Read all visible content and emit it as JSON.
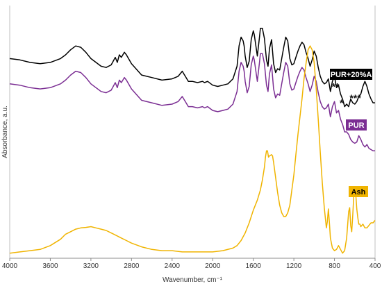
{
  "chart_data": {
    "type": "line",
    "title": "",
    "xlabel": "Wavenumber, cm⁻¹",
    "ylabel": "Absorbance, a.u.",
    "xlim": [
      4000,
      400
    ],
    "x_reversed": true,
    "ylim": [
      0,
      100
    ],
    "grid": false,
    "x_ticks": [
      4000,
      3600,
      3200,
      2800,
      2400,
      2000,
      1600,
      1200,
      800,
      400
    ],
    "x_tick_labels": [
      "4000",
      "3600",
      "3200",
      "2800",
      "2400",
      "2000",
      "1600",
      "1200",
      "800",
      "400"
    ],
    "series": [
      {
        "name": "PUR+20%A",
        "color": "#000000",
        "label_text_color": "#ffffff",
        "x": [
          4000,
          3900,
          3800,
          3700,
          3600,
          3500,
          3450,
          3400,
          3350,
          3300,
          3250,
          3200,
          3150,
          3100,
          3050,
          3000,
          2960,
          2940,
          2920,
          2900,
          2870,
          2850,
          2800,
          2700,
          2600,
          2500,
          2400,
          2340,
          2300,
          2270,
          2240,
          2200,
          2150,
          2100,
          2080,
          2050,
          2000,
          1950,
          1900,
          1850,
          1800,
          1760,
          1740,
          1720,
          1700,
          1690,
          1680,
          1660,
          1640,
          1620,
          1600,
          1590,
          1560,
          1540,
          1530,
          1510,
          1490,
          1470,
          1455,
          1440,
          1420,
          1410,
          1400,
          1380,
          1360,
          1340,
          1320,
          1300,
          1280,
          1260,
          1240,
          1220,
          1200,
          1180,
          1160,
          1140,
          1120,
          1100,
          1080,
          1060,
          1040,
          1020,
          1000,
          980,
          960,
          940,
          920,
          900,
          880,
          860,
          840,
          820,
          800,
          780,
          760,
          740,
          720,
          700,
          680,
          660,
          640,
          620,
          600,
          580,
          560,
          540,
          520,
          500,
          480,
          460,
          440,
          420,
          400
        ],
        "values": [
          79,
          78.5,
          77.5,
          77,
          77.5,
          79,
          80.5,
          82.5,
          84,
          83.5,
          81.5,
          79,
          77.5,
          76,
          75.5,
          76.5,
          79.5,
          77.5,
          80.5,
          79.5,
          81.5,
          80.5,
          77,
          72.5,
          71.5,
          70.5,
          71,
          72,
          74,
          72,
          70,
          70,
          69.5,
          70,
          69.5,
          70,
          68.5,
          68,
          68.5,
          69,
          71,
          76,
          84,
          87.5,
          86,
          84,
          80,
          75.5,
          78,
          86.5,
          90,
          88.5,
          80,
          87,
          91,
          91,
          87,
          78.5,
          76,
          83,
          86.5,
          82,
          77,
          73.5,
          75,
          74.5,
          79,
          83.5,
          87.5,
          86,
          79,
          76.5,
          77,
          79.5,
          82,
          84,
          85.5,
          84.5,
          81.5,
          79,
          76,
          78.5,
          82,
          80,
          75.5,
          72,
          70,
          69,
          69.5,
          71,
          66,
          70,
          72,
          67.5,
          68.5,
          65,
          63,
          60,
          61,
          60,
          63,
          61.5,
          61,
          62,
          64,
          65,
          68,
          70,
          68,
          65,
          63,
          61.5,
          61.5
        ]
      },
      {
        "name": "PUR",
        "color": "#7b2e93",
        "label_text_color": "#ffffff",
        "x": [
          4000,
          3900,
          3800,
          3700,
          3600,
          3500,
          3450,
          3400,
          3350,
          3300,
          3250,
          3200,
          3150,
          3100,
          3050,
          3000,
          2960,
          2940,
          2920,
          2900,
          2870,
          2850,
          2800,
          2700,
          2600,
          2500,
          2400,
          2340,
          2300,
          2270,
          2240,
          2200,
          2150,
          2100,
          2080,
          2050,
          2000,
          1950,
          1900,
          1850,
          1800,
          1760,
          1740,
          1720,
          1700,
          1690,
          1680,
          1660,
          1640,
          1620,
          1600,
          1590,
          1560,
          1540,
          1530,
          1510,
          1490,
          1470,
          1455,
          1440,
          1420,
          1410,
          1400,
          1380,
          1360,
          1340,
          1320,
          1300,
          1280,
          1260,
          1240,
          1220,
          1200,
          1180,
          1160,
          1140,
          1120,
          1100,
          1080,
          1060,
          1040,
          1020,
          1000,
          980,
          960,
          940,
          920,
          900,
          880,
          860,
          840,
          820,
          800,
          780,
          760,
          740,
          720,
          700,
          680,
          660,
          640,
          620,
          600,
          580,
          560,
          540,
          520,
          500,
          480,
          460,
          440,
          420,
          400
        ],
        "values": [
          69,
          68.5,
          67.5,
          67,
          67.5,
          69,
          70.5,
          72.5,
          74,
          73.5,
          71.5,
          69,
          67.5,
          66,
          65.5,
          66.5,
          69.5,
          67.5,
          70.5,
          69.5,
          71.5,
          70.5,
          67,
          62.5,
          61.5,
          60.5,
          61,
          62,
          64,
          62,
          60,
          60,
          59.5,
          60,
          59.5,
          60,
          58.5,
          58,
          58.5,
          59,
          61,
          66,
          74,
          77.5,
          76,
          74,
          70,
          65.5,
          68,
          76.5,
          80,
          78.5,
          70,
          77,
          81,
          81,
          77,
          68.5,
          66,
          73,
          76.5,
          72,
          67,
          63.5,
          65,
          64.5,
          69,
          73.5,
          77.5,
          76,
          69,
          66.5,
          67,
          69.5,
          72,
          74,
          75.5,
          74.5,
          71.5,
          69,
          66,
          68.5,
          72,
          70,
          65.5,
          62,
          60,
          59,
          59.5,
          61,
          56,
          60,
          62,
          57.5,
          58.5,
          55,
          53,
          50,
          50,
          49,
          47,
          46,
          45.5,
          46,
          48.5,
          47,
          45,
          44,
          45,
          43.5,
          43,
          42.5,
          42.5
        ]
      },
      {
        "name": "Ash",
        "color": "#f0b400",
        "label_text_color": "#000000",
        "x": [
          4000,
          3900,
          3800,
          3700,
          3600,
          3500,
          3450,
          3400,
          3350,
          3300,
          3250,
          3200,
          3150,
          3100,
          3050,
          3000,
          2950,
          2900,
          2850,
          2800,
          2700,
          2600,
          2500,
          2400,
          2300,
          2200,
          2100,
          2000,
          1900,
          1800,
          1760,
          1720,
          1680,
          1640,
          1600,
          1560,
          1530,
          1510,
          1490,
          1480,
          1470,
          1460,
          1450,
          1440,
          1420,
          1410,
          1400,
          1380,
          1360,
          1340,
          1320,
          1300,
          1280,
          1260,
          1240,
          1220,
          1200,
          1180,
          1160,
          1140,
          1120,
          1100,
          1080,
          1060,
          1040,
          1020,
          1000,
          980,
          960,
          940,
          920,
          900,
          880,
          870,
          860,
          850,
          840,
          820,
          800,
          780,
          760,
          740,
          720,
          700,
          680,
          660,
          650,
          640,
          630,
          620,
          610,
          600,
          590,
          580,
          570,
          560,
          550,
          540,
          530,
          520,
          500,
          480,
          460,
          440,
          420,
          400
        ],
        "values": [
          2,
          2.5,
          3,
          3.5,
          5,
          7.5,
          9.5,
          10.5,
          11.5,
          12,
          12.2,
          12.5,
          12,
          11.5,
          11,
          10,
          9,
          8,
          7,
          6,
          4.5,
          3.5,
          3,
          3,
          2.5,
          2.5,
          2.5,
          2.5,
          3,
          4,
          5,
          7,
          10,
          14,
          19,
          23,
          27,
          31,
          36,
          40,
          42.5,
          42.5,
          40,
          40.5,
          41,
          40.5,
          38,
          32,
          26,
          21,
          18,
          16.5,
          16.5,
          18,
          21,
          27,
          33,
          41,
          49,
          56,
          63,
          71,
          77,
          82.5,
          84,
          82.5,
          77.5,
          67,
          55,
          42,
          30,
          20,
          12,
          14.5,
          19.5,
          14,
          8,
          4,
          3,
          3.5,
          5,
          3.5,
          2,
          3,
          8,
          18.5,
          20,
          13,
          10.5,
          17,
          24.5,
          27,
          25.5,
          19.5,
          16,
          13.5,
          13.5,
          12.5,
          13,
          13.5,
          12,
          12,
          13,
          14,
          14,
          15
        ]
      }
    ],
    "annotations": [
      {
        "text": "**",
        "x": 790,
        "y": 68
      },
      {
        "text": "*",
        "x": 730,
        "y": 61.5
      },
      {
        "text": "***",
        "x": 595,
        "y": 63.5
      }
    ]
  }
}
